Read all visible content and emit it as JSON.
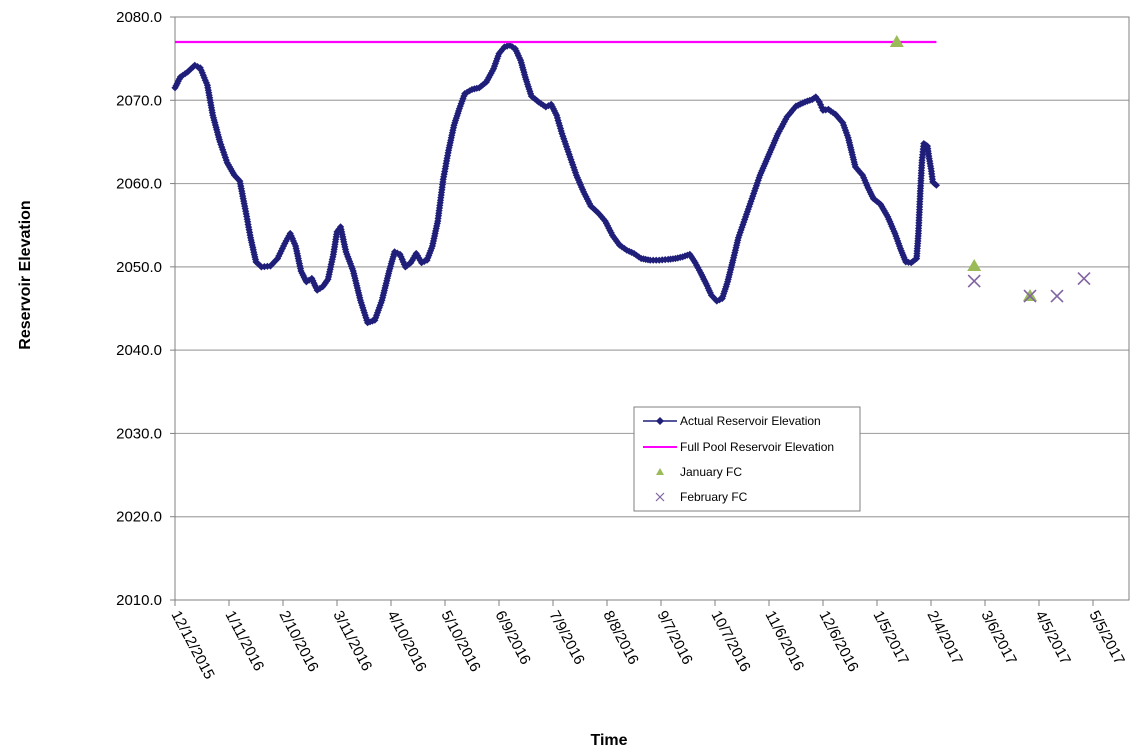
{
  "chart_data": {
    "type": "line",
    "title": "",
    "xlabel": "Time",
    "ylabel": "Reservoir Elevation",
    "x_start": "12/12/2015",
    "x_end": "5/5/2017",
    "x_tick_labels": [
      "12/12/2015",
      "1/11/2016",
      "2/10/2016",
      "3/11/2016",
      "4/10/2016",
      "5/10/2016",
      "6/9/2016",
      "7/9/2016",
      "8/8/2016",
      "9/7/2016",
      "10/7/2016",
      "11/6/2016",
      "12/6/2016",
      "1/5/2017",
      "2/4/2017",
      "3/6/2017",
      "4/5/2017",
      "5/5/2017"
    ],
    "ylim": [
      2010.0,
      2080.0
    ],
    "y_tick_labels": [
      "2080.0",
      "2070.0",
      "2060.0",
      "2050.0",
      "2040.0",
      "2030.0",
      "2020.0",
      "2010.0"
    ],
    "y_ticks": [
      2080,
      2070,
      2060,
      2050,
      2040,
      2030,
      2020,
      2010
    ],
    "grid": "horizontal",
    "legend_position": "center-right",
    "series": [
      {
        "name": "Actual Reservoir Elevation",
        "kind": "line-markers",
        "color": "#1f1f7a",
        "marker": "diamond",
        "points": [
          [
            "12/12/2015",
            2071.5
          ],
          [
            "12/15/2015",
            2072.8
          ],
          [
            "12/19/2015",
            2073.4
          ],
          [
            "12/23/2015",
            2074.2
          ],
          [
            "12/26/2015",
            2073.9
          ],
          [
            "12/30/2015",
            2071.8
          ],
          [
            "1/2/2016",
            2068.2
          ],
          [
            "1/6/2016",
            2065.0
          ],
          [
            "1/10/2016",
            2062.5
          ],
          [
            "1/14/2016",
            2061.0
          ],
          [
            "1/17/2016",
            2060.3
          ],
          [
            "1/20/2016",
            2057.0
          ],
          [
            "1/23/2016",
            2053.5
          ],
          [
            "1/26/2016",
            2050.6
          ],
          [
            "1/29/2016",
            2050.0
          ],
          [
            "2/3/2016",
            2050.1
          ],
          [
            "2/7/2016",
            2051.0
          ],
          [
            "2/11/2016",
            2052.8
          ],
          [
            "2/14/2016",
            2054.0
          ],
          [
            "2/17/2016",
            2052.5
          ],
          [
            "2/20/2016",
            2049.5
          ],
          [
            "2/23/2016",
            2048.2
          ],
          [
            "2/26/2016",
            2048.6
          ],
          [
            "2/29/2016",
            2047.2
          ],
          [
            "3/3/2016",
            2047.6
          ],
          [
            "3/6/2016",
            2048.5
          ],
          [
            "3/9/2016",
            2051.5
          ],
          [
            "3/11/2016",
            2054.2
          ],
          [
            "3/13/2016",
            2054.8
          ],
          [
            "3/16/2016",
            2051.8
          ],
          [
            "3/20/2016",
            2049.5
          ],
          [
            "3/24/2016",
            2046.0
          ],
          [
            "3/28/2016",
            2043.3
          ],
          [
            "4/1/2016",
            2043.6
          ],
          [
            "4/5/2016",
            2046.0
          ],
          [
            "4/9/2016",
            2049.5
          ],
          [
            "4/12/2016",
            2051.8
          ],
          [
            "4/15/2016",
            2051.5
          ],
          [
            "4/18/2016",
            2050.0
          ],
          [
            "4/21/2016",
            2050.5
          ],
          [
            "4/24/2016",
            2051.6
          ],
          [
            "4/27/2016",
            2050.5
          ],
          [
            "4/30/2016",
            2050.8
          ],
          [
            "5/3/2016",
            2052.5
          ],
          [
            "5/6/2016",
            2055.5
          ],
          [
            "5/9/2016",
            2060.5
          ],
          [
            "5/12/2016",
            2064.0
          ],
          [
            "5/15/2016",
            2067.0
          ],
          [
            "5/18/2016",
            2069.0
          ],
          [
            "5/21/2016",
            2070.8
          ],
          [
            "5/25/2016",
            2071.3
          ],
          [
            "5/29/2016",
            2071.5
          ],
          [
            "6/2/2016",
            2072.2
          ],
          [
            "6/6/2016",
            2073.8
          ],
          [
            "6/9/2016",
            2075.6
          ],
          [
            "6/12/2016",
            2076.4
          ],
          [
            "6/15/2016",
            2076.6
          ],
          [
            "6/18/2016",
            2076.2
          ],
          [
            "6/21/2016",
            2074.8
          ],
          [
            "6/24/2016",
            2072.5
          ],
          [
            "6/27/2016",
            2070.5
          ],
          [
            "7/1/2016",
            2069.8
          ],
          [
            "7/5/2016",
            2069.2
          ],
          [
            "7/8/2016",
            2069.5
          ],
          [
            "7/11/2016",
            2068.2
          ],
          [
            "7/14/2016",
            2066.0
          ],
          [
            "7/18/2016",
            2063.5
          ],
          [
            "7/22/2016",
            2061.0
          ],
          [
            "7/26/2016",
            2059.0
          ],
          [
            "7/30/2016",
            2057.3
          ],
          [
            "8/3/2016",
            2056.5
          ],
          [
            "8/7/2016",
            2055.5
          ],
          [
            "8/11/2016",
            2053.8
          ],
          [
            "8/15/2016",
            2052.6
          ],
          [
            "8/19/2016",
            2052.0
          ],
          [
            "8/23/2016",
            2051.6
          ],
          [
            "8/27/2016",
            2051.0
          ],
          [
            "9/1/2016",
            2050.8
          ],
          [
            "9/6/2016",
            2050.8
          ],
          [
            "9/11/2016",
            2050.9
          ],
          [
            "9/15/2016",
            2051.0
          ],
          [
            "9/19/2016",
            2051.2
          ],
          [
            "9/23/2016",
            2051.5
          ],
          [
            "9/26/2016",
            2050.5
          ],
          [
            "9/29/2016",
            2049.3
          ],
          [
            "10/2/2016",
            2048.0
          ],
          [
            "10/5/2016",
            2046.6
          ],
          [
            "10/8/2016",
            2045.9
          ],
          [
            "10/11/2016",
            2046.2
          ],
          [
            "10/14/2016",
            2048.2
          ],
          [
            "10/17/2016",
            2050.8
          ],
          [
            "10/20/2016",
            2053.5
          ],
          [
            "10/24/2016",
            2056.0
          ],
          [
            "10/28/2016",
            2058.5
          ],
          [
            "11/1/2016",
            2061.0
          ],
          [
            "11/6/2016",
            2063.5
          ],
          [
            "11/11/2016",
            2066.0
          ],
          [
            "11/16/2016",
            2068.0
          ],
          [
            "11/21/2016",
            2069.3
          ],
          [
            "11/26/2016",
            2069.8
          ],
          [
            "11/30/2016",
            2070.1
          ],
          [
            "12/2/2016",
            2070.4
          ],
          [
            "12/4/2016",
            2069.8
          ],
          [
            "12/6/2016",
            2068.8
          ],
          [
            "12/9/2016",
            2068.9
          ],
          [
            "12/13/2016",
            2068.3
          ],
          [
            "12/17/2016",
            2067.3
          ],
          [
            "12/20/2016",
            2065.5
          ],
          [
            "12/24/2016",
            2062.0
          ],
          [
            "12/28/2016",
            2061.0
          ],
          [
            "12/31/2016",
            2059.5
          ],
          [
            "1/3/2017",
            2058.2
          ],
          [
            "1/7/2017",
            2057.5
          ],
          [
            "1/11/2017",
            2056.0
          ],
          [
            "1/15/2017",
            2054.0
          ],
          [
            "1/18/2017",
            2052.2
          ],
          [
            "1/21/2017",
            2050.6
          ],
          [
            "1/24/2017",
            2050.5
          ],
          [
            "1/27/2017",
            2051.0
          ],
          [
            "1/28/2017",
            2054.0
          ],
          [
            "1/29/2017",
            2058.8
          ],
          [
            "1/30/2017",
            2062.8
          ],
          [
            "1/31/2017",
            2064.8
          ],
          [
            "2/2/2017",
            2064.5
          ],
          [
            "2/3/2017",
            2063.0
          ],
          [
            "2/4/2017",
            2061.8
          ],
          [
            "2/5/2017",
            2060.2
          ],
          [
            "2/7/2017",
            2059.8
          ]
        ]
      },
      {
        "name": "Full Pool Reservoir Elevation",
        "kind": "line",
        "color": "#ff00ff",
        "points": [
          [
            "12/12/2015",
            2077.0
          ],
          [
            "2/7/2017",
            2077.0
          ]
        ]
      },
      {
        "name": "January FC",
        "kind": "scatter",
        "color": "#9bbb59",
        "marker": "triangle",
        "points": [
          [
            "1/16/2017",
            2077.0
          ],
          [
            "2/28/2017",
            2050.1
          ],
          [
            "3/31/2017",
            2046.5
          ]
        ]
      },
      {
        "name": "February FC",
        "kind": "scatter",
        "color": "#8064a2",
        "marker": "x",
        "points": [
          [
            "2/28/2017",
            2048.3
          ],
          [
            "3/31/2017",
            2046.5
          ],
          [
            "4/15/2017",
            2046.5
          ],
          [
            "4/30/2017",
            2048.6
          ]
        ]
      }
    ]
  }
}
